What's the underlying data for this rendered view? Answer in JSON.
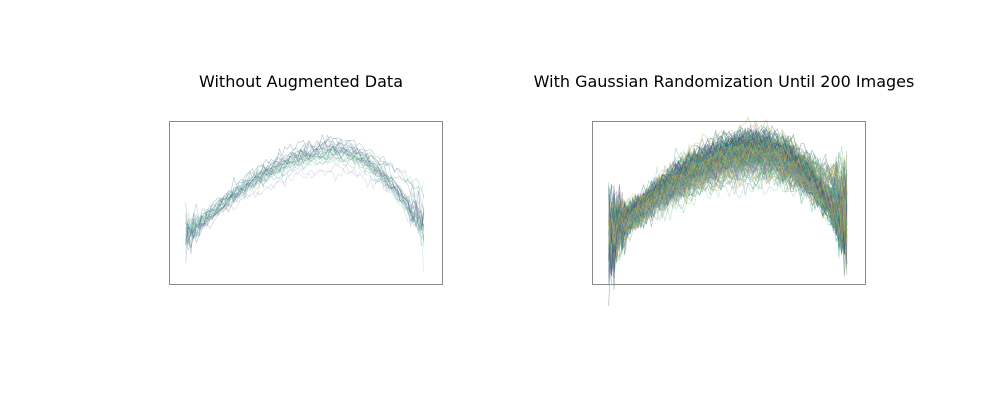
{
  "chart_data": [
    {
      "type": "line",
      "title": "Without Augmented Data",
      "xlabel": "",
      "ylabel": "",
      "axes_visible": false,
      "grid": false,
      "legend": "none",
      "xlim": [
        -0.07,
        1.08
      ],
      "ylim": [
        -0.55,
        1.35
      ],
      "x_range": [
        0,
        1
      ],
      "n_series": 26,
      "peak_x": 0.63,
      "noise": 0.035,
      "line_opacity": 0.35,
      "colors": [
        "#2d6a8a",
        "#3b8f6f",
        "#4bb07a",
        "#7fc9a5",
        "#6b5b95",
        "#a28ec7",
        "#2f4f6f",
        "#5a9e8a"
      ],
      "series": [
        {
          "start": 0.02,
          "peak": 1.0,
          "end": 0.12
        },
        {
          "start": -0.02,
          "peak": 0.98,
          "end": 0.05
        },
        {
          "start": 0.05,
          "peak": 1.02,
          "end": 0.08
        },
        {
          "start": 0.0,
          "peak": 0.95,
          "end": 0.18
        },
        {
          "start": 0.08,
          "peak": 1.05,
          "end": 0.02
        },
        {
          "start": 0.03,
          "peak": 0.97,
          "end": 0.1
        },
        {
          "start": -0.05,
          "peak": 1.08,
          "end": 0.15
        },
        {
          "start": 0.01,
          "peak": 0.9,
          "end": 0.2
        },
        {
          "start": 0.04,
          "peak": 1.1,
          "end": 0.48
        },
        {
          "start": 0.06,
          "peak": 1.02,
          "end": 0.4
        },
        {
          "start": 0.0,
          "peak": 0.88,
          "end": 0.0
        },
        {
          "start": 0.1,
          "peak": 1.0,
          "end": 0.55
        },
        {
          "start": -0.1,
          "peak": 0.98,
          "end": 0.12
        },
        {
          "start": 0.02,
          "peak": 0.8,
          "end": 0.3
        },
        {
          "start": 0.07,
          "peak": 1.15,
          "end": 0.05
        },
        {
          "start": -0.03,
          "peak": 0.96,
          "end": 0.25
        },
        {
          "start": 0.05,
          "peak": 1.05,
          "end": 0.1
        },
        {
          "start": 0.0,
          "peak": 1.0,
          "end": 0.6
        },
        {
          "start": 0.08,
          "peak": 0.92,
          "end": 0.08
        },
        {
          "start": 0.03,
          "peak": 0.99,
          "end": 0.15
        },
        {
          "start": -0.06,
          "peak": 1.03,
          "end": 0.22
        },
        {
          "start": 0.04,
          "peak": 0.75,
          "end": 0.35
        },
        {
          "start": 0.01,
          "peak": 1.07,
          "end": 0.05
        },
        {
          "start": 0.06,
          "peak": 0.94,
          "end": 0.18
        },
        {
          "start": -0.02,
          "peak": 1.01,
          "end": 0.12
        },
        {
          "start": 0.02,
          "peak": 0.97,
          "end": 0.28
        }
      ]
    },
    {
      "type": "line",
      "title": "With Gaussian Randomization Until 200 Images",
      "xlabel": "",
      "ylabel": "",
      "axes_visible": false,
      "grid": false,
      "legend": "none",
      "xlim": [
        -0.07,
        1.08
      ],
      "ylim": [
        -0.55,
        1.35
      ],
      "x_range": [
        0,
        1
      ],
      "n_series": 200,
      "peak_x": 0.63,
      "noise": 0.06,
      "line_opacity": 0.5,
      "augmentation": "gaussian",
      "augmented_series_count": 200,
      "colors": [
        "#2d6a8a",
        "#3b8f6f",
        "#4bb07a",
        "#7fc9a5",
        "#6b5b95",
        "#a28ec7",
        "#2f4f6f",
        "#5a9e8a",
        "#c9a23b",
        "#e0b04a"
      ]
    }
  ]
}
